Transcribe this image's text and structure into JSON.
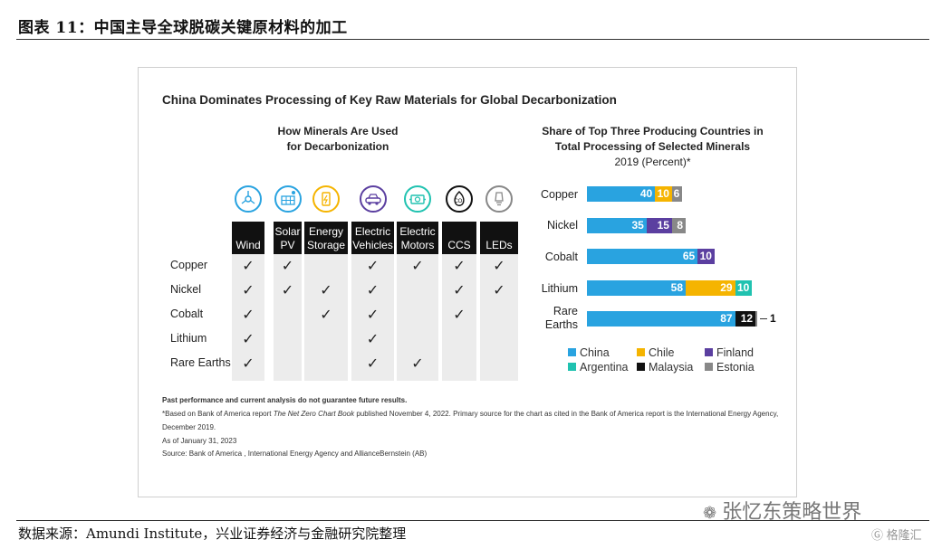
{
  "figure_title": "图表 11：中国主导全球脱碳关键原材料的加工",
  "panel_title": "China Dominates Processing of Key Raw Materials for Global Decarbonization",
  "left_title": [
    "How Minerals Are Used",
    "for Decarbonization"
  ],
  "right_title": [
    "Share of Top Three Producing Countries in",
    "Total Processing of Selected Minerals",
    "2019 (Percent)*"
  ],
  "icons": [
    {
      "name": "wind-icon",
      "color": "#29a3e0"
    },
    {
      "name": "solar-pv-icon",
      "color": "#29a3e0"
    },
    {
      "name": "energy-storage-icon",
      "color": "#f5b400"
    },
    {
      "name": "electric-vehicles-icon",
      "color": "#5b3fa0"
    },
    {
      "name": "electric-motors-icon",
      "color": "#20c2b0"
    },
    {
      "name": "ccs-icon",
      "color": "#111111"
    },
    {
      "name": "leds-icon",
      "color": "#888888"
    }
  ],
  "columns": [
    "Wind",
    "Solar PV",
    "Energy Storage",
    "Electric Vehicles",
    "Electric Motors",
    "CCS",
    "LEDs"
  ],
  "rows": [
    {
      "label": "Copper",
      "checks": [
        true,
        true,
        false,
        true,
        true,
        true,
        true
      ]
    },
    {
      "label": "Nickel",
      "checks": [
        true,
        true,
        true,
        true,
        false,
        true,
        true
      ]
    },
    {
      "label": "Cobalt",
      "checks": [
        true,
        false,
        true,
        true,
        false,
        true,
        false
      ]
    },
    {
      "label": "Lithium",
      "checks": [
        true,
        false,
        false,
        true,
        false,
        false,
        false
      ]
    },
    {
      "label": "Rare Earths",
      "checks": [
        true,
        false,
        false,
        true,
        true,
        false,
        false
      ]
    }
  ],
  "check_mark": "✓",
  "colors": {
    "China": "#29a3e0",
    "Chile": "#f5b400",
    "Finland": "#5b3fa0",
    "Argentina": "#20c2b0",
    "Malaysia": "#111111",
    "Estonia": "#888888"
  },
  "chart_data": {
    "type": "bar",
    "orientation": "horizontal",
    "stacked": true,
    "title": "Share of Top Three Producing Countries in Total Processing of Selected Minerals",
    "subtitle": "2019 (Percent)*",
    "categories": [
      "Copper",
      "Nickel",
      "Cobalt",
      "Lithium",
      "Rare Earths"
    ],
    "bars": [
      {
        "category": "Copper",
        "segments": [
          {
            "country": "China",
            "value": 40
          },
          {
            "country": "Chile",
            "value": 10
          },
          {
            "country": "Estonia",
            "value": 6
          }
        ]
      },
      {
        "category": "Nickel",
        "segments": [
          {
            "country": "China",
            "value": 35
          },
          {
            "country": "Finland",
            "value": 15
          },
          {
            "country": "Estonia",
            "value": 8
          }
        ]
      },
      {
        "category": "Cobalt",
        "segments": [
          {
            "country": "China",
            "value": 65
          },
          {
            "country": "Finland",
            "value": 10
          }
        ]
      },
      {
        "category": "Lithium",
        "segments": [
          {
            "country": "China",
            "value": 58
          },
          {
            "country": "Chile",
            "value": 29
          },
          {
            "country": "Argentina",
            "value": 10
          }
        ]
      },
      {
        "category": "Rare Earths",
        "segments": [
          {
            "country": "China",
            "value": 87
          },
          {
            "country": "Malaysia",
            "value": 12
          },
          {
            "country": "Estonia",
            "value": 1
          }
        ]
      }
    ],
    "legend": [
      "China",
      "Chile",
      "Finland",
      "Argentina",
      "Malaysia",
      "Estonia"
    ],
    "legend_position": "bottom"
  },
  "notes": {
    "disclaimer": "Past performance and current analysis do not guarantee future results.",
    "footnote_1a": "*Based on Bank of America report ",
    "footnote_1b": "The Net Zero Chart Book",
    "footnote_1c": " published November 4, 2022. Primary source for the chart as cited in the Bank of America  report is the International Energy Agency,",
    "footnote_2": "December 2019.",
    "as_of": "As of January 31, 2023",
    "source": "Source: Bank of America , International Energy Agency and AllianceBernstein (AB)"
  },
  "source_line": "数据来源：Amundi Institute，兴业证券经济与金融研究院整理",
  "watermark": "张忆东策略世界",
  "watermark_small": "格隆汇"
}
